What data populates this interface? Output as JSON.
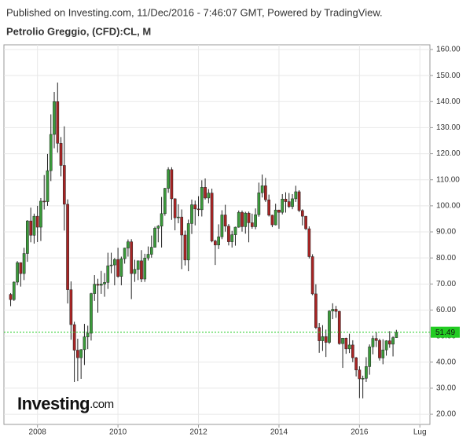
{
  "header": {
    "published": "Published on Investing.com, 11/Dec/2016 - 7:46:07 GMT, Powered by TradingView.",
    "instrument": "Petrolio Greggio, (CFD):CL, M"
  },
  "logo": {
    "name": "Investing",
    "suffix": ".com"
  },
  "chart_data": {
    "type": "candlestick",
    "up_color": "#3a9a3a",
    "down_color": "#a82424",
    "grid": true,
    "last_price": 51.49,
    "last_price_color": "#22cc22",
    "x": [
      "2007-05",
      "2007-06",
      "2007-07",
      "2007-08",
      "2007-09",
      "2007-10",
      "2007-11",
      "2007-12",
      "2008-01",
      "2008-02",
      "2008-03",
      "2008-04",
      "2008-05",
      "2008-06",
      "2008-07",
      "2008-08",
      "2008-09",
      "2008-10",
      "2008-11",
      "2008-12",
      "2009-01",
      "2009-02",
      "2009-03",
      "2009-04",
      "2009-05",
      "2009-06",
      "2009-07",
      "2009-08",
      "2009-09",
      "2009-10",
      "2009-11",
      "2009-12",
      "2010-01",
      "2010-02",
      "2010-03",
      "2010-04",
      "2010-05",
      "2010-06",
      "2010-07",
      "2010-08",
      "2010-09",
      "2010-10",
      "2010-11",
      "2010-12",
      "2011-01",
      "2011-02",
      "2011-03",
      "2011-04",
      "2011-05",
      "2011-06",
      "2011-07",
      "2011-08",
      "2011-09",
      "2011-10",
      "2011-11",
      "2011-12",
      "2012-01",
      "2012-02",
      "2012-03",
      "2012-04",
      "2012-05",
      "2012-06",
      "2012-07",
      "2012-08",
      "2012-09",
      "2012-10",
      "2012-11",
      "2012-12",
      "2013-01",
      "2013-02",
      "2013-03",
      "2013-04",
      "2013-05",
      "2013-06",
      "2013-07",
      "2013-08",
      "2013-09",
      "2013-10",
      "2013-11",
      "2013-12",
      "2014-01",
      "2014-02",
      "2014-03",
      "2014-04",
      "2014-05",
      "2014-06",
      "2014-07",
      "2014-08",
      "2014-09",
      "2014-10",
      "2014-11",
      "2014-12",
      "2015-01",
      "2015-02",
      "2015-03",
      "2015-04",
      "2015-05",
      "2015-06",
      "2015-07",
      "2015-08",
      "2015-09",
      "2015-10",
      "2015-11",
      "2015-12",
      "2016-01",
      "2016-02",
      "2016-03",
      "2016-04",
      "2016-05",
      "2016-06",
      "2016-07",
      "2016-08",
      "2016-09",
      "2016-10",
      "2016-11",
      "2016-12"
    ],
    "open": [
      66,
      64,
      70.7,
      78.2,
      74,
      81.7,
      94.2,
      88.7,
      96,
      91.8,
      101.8,
      101.6,
      113.5,
      127.4,
      140,
      124,
      115.5,
      100.6,
      67.8,
      54.4,
      44.6,
      41.7,
      44.8,
      49.7,
      51.1,
      66.3,
      69.9,
      69.5,
      70,
      70.6,
      77,
      77.3,
      79.4,
      72.9,
      79.7,
      83.8,
      86.2,
      74,
      75.6,
      78.9,
      71.9,
      79.97,
      81.4,
      84.1,
      91.4,
      92.2,
      97,
      106.7,
      113.9,
      102.7,
      95.4,
      95.7,
      88.8,
      79.2,
      93.2,
      100.4,
      98.8,
      98.5,
      107.1,
      103,
      104.9,
      86.5,
      84.96,
      88.1,
      96.5,
      92.2,
      86.2,
      88.9,
      91.8,
      97.5,
      92,
      97.2,
      93.5,
      91.97,
      96.6,
      105,
      107.7,
      102.3,
      96.4,
      92.7,
      98.4,
      97.5,
      102.6,
      101.6,
      99.7,
      102.7,
      105.4,
      98.2,
      96,
      91.2,
      80.5,
      66.2,
      53.3,
      48.2,
      49.8,
      47.6,
      59.6,
      60.3,
      59.5,
      47.1,
      49.2,
      45.1,
      46.6,
      41.7,
      37,
      33.6,
      33.8,
      38.3,
      45.9,
      49.1,
      48.3,
      41.6,
      44.7,
      48.2,
      46.9,
      49.4
    ],
    "high": [
      66.5,
      71,
      78.8,
      78.3,
      83.9,
      94.5,
      99.3,
      97,
      100,
      103,
      111.8,
      119.9,
      135.1,
      143.7,
      147.3,
      126.4,
      130.5,
      102.5,
      71,
      55.5,
      49,
      45,
      54.7,
      54,
      66.6,
      73.4,
      72,
      75,
      74.2,
      82,
      82,
      80,
      83.9,
      80.5,
      83.9,
      87.1,
      87.2,
      79.3,
      79,
      83,
      81.6,
      84.4,
      88.6,
      92,
      92.6,
      103.4,
      106.9,
      114.8,
      114.8,
      102.9,
      100.6,
      98.6,
      90.5,
      94.7,
      102.4,
      102,
      103.7,
      109.8,
      110.5,
      106.4,
      106.6,
      87,
      92.9,
      98.3,
      100.4,
      93,
      90.4,
      92,
      98.2,
      98.2,
      97.7,
      97.8,
      97,
      99,
      108.9,
      112,
      110.7,
      104.3,
      96.6,
      100.8,
      98.5,
      104.5,
      105.2,
      104.9,
      104.5,
      107.7,
      106,
      98.7,
      96.1,
      92.1,
      81.4,
      69.9,
      55,
      54.2,
      52.5,
      59.9,
      62.6,
      61.6,
      59.7,
      49.3,
      49.4,
      50.9,
      48.4,
      42,
      38.4,
      34.8,
      41.9,
      46.8,
      50.2,
      51.7,
      49,
      48.8,
      48.4,
      51.9,
      49.9,
      52.4
    ],
    "low": [
      61.5,
      63.5,
      69.5,
      69,
      71.5,
      78.5,
      86,
      85.5,
      86.1,
      86.5,
      98.6,
      100,
      109.5,
      122.1,
      120.4,
      111.3,
      90.5,
      62.5,
      48.6,
      32.4,
      32.7,
      33.6,
      38.9,
      45,
      48.3,
      63.5,
      59,
      66.2,
      65.1,
      68.1,
      74.1,
      69.5,
      72.4,
      69.5,
      77.8,
      80.5,
      64.2,
      70.8,
      71.5,
      70.7,
      70.8,
      79,
      80.1,
      84,
      86,
      84,
      96.2,
      105,
      94.6,
      90.6,
      93.3,
      75.7,
      77.1,
      74.9,
      89.2,
      92.5,
      96,
      95.9,
      102.4,
      101,
      86,
      77.3,
      83.4,
      87.2,
      90.1,
      84.8,
      84,
      84.7,
      91.6,
      90.1,
      89.3,
      86,
      91.2,
      91,
      95.8,
      103.2,
      101.5,
      95.9,
      91.8,
      92.5,
      91.2,
      96.7,
      97.4,
      99.2,
      98.7,
      101.5,
      97.6,
      92.5,
      90.7,
      79.8,
      65.7,
      52.7,
      43.6,
      44.3,
      42,
      47,
      56.5,
      57,
      46.7,
      37.8,
      43.2,
      43.5,
      40,
      34.5,
      26.2,
      26.1,
      32.4,
      35.2,
      43,
      45.8,
      40.6,
      39.2,
      42.5,
      45.5,
      42.2,
      49.3
    ],
    "close": [
      64,
      70.7,
      78.2,
      74,
      81.7,
      94.2,
      88.7,
      96,
      91.8,
      101.8,
      101.6,
      113.5,
      127.4,
      140,
      124,
      115.5,
      100.6,
      67.8,
      54.4,
      44.6,
      41.7,
      44.8,
      49.7,
      51.1,
      66.3,
      69.9,
      69.5,
      70,
      70.6,
      77,
      77.3,
      79.4,
      72.9,
      79.7,
      83.8,
      86.2,
      74,
      75.6,
      78.9,
      71.9,
      79.97,
      81.4,
      84.1,
      91.4,
      92.2,
      97,
      106.7,
      113.9,
      102.7,
      95.4,
      95.7,
      88.8,
      79.2,
      93.2,
      100.4,
      98.8,
      98.5,
      107.1,
      103,
      104.9,
      86.5,
      84.96,
      88.1,
      96.5,
      92.2,
      86.2,
      88.9,
      91.8,
      97.5,
      92,
      97.2,
      93.5,
      91.97,
      96.6,
      105,
      107.7,
      102.3,
      96.4,
      92.7,
      98.4,
      97.5,
      102.6,
      101.6,
      99.7,
      102.7,
      105.4,
      98.2,
      96,
      91.2,
      80.5,
      66.2,
      53.3,
      48.2,
      49.8,
      47.6,
      59.6,
      60.3,
      59.5,
      47.1,
      49.2,
      45.1,
      46.6,
      41.7,
      37,
      33.6,
      33.8,
      38.3,
      45.9,
      49.1,
      48.3,
      41.6,
      44.7,
      48.2,
      46.9,
      49.4,
      51.49
    ],
    "xlim": [
      "2007-03",
      "2017-10"
    ],
    "xticks": [
      {
        "value": "2008-01",
        "label": "2008"
      },
      {
        "value": "2010-01",
        "label": "2010"
      },
      {
        "value": "2012-01",
        "label": "2012"
      },
      {
        "value": "2014-01",
        "label": "2014"
      },
      {
        "value": "2016-01",
        "label": "2016"
      },
      {
        "value": "2017-07",
        "label": "Lug"
      }
    ],
    "ylim": [
      16.1,
      161.8
    ],
    "yticks": [
      {
        "value": 20,
        "label": "20.00"
      },
      {
        "value": 30,
        "label": "30.00"
      },
      {
        "value": 40,
        "label": "40.00"
      },
      {
        "value": 50,
        "label": "50.00"
      },
      {
        "value": 60,
        "label": "60.00"
      },
      {
        "value": 70,
        "label": "70.00"
      },
      {
        "value": 80,
        "label": "80.00"
      },
      {
        "value": 90,
        "label": "90.00"
      },
      {
        "value": 100,
        "label": "100.00"
      },
      {
        "value": 110,
        "label": "110.00"
      },
      {
        "value": 120,
        "label": "120.00"
      },
      {
        "value": 130,
        "label": "130.00"
      },
      {
        "value": 140,
        "label": "140.00"
      },
      {
        "value": 150,
        "label": "150.00"
      },
      {
        "value": 160,
        "label": "160.00"
      }
    ]
  }
}
